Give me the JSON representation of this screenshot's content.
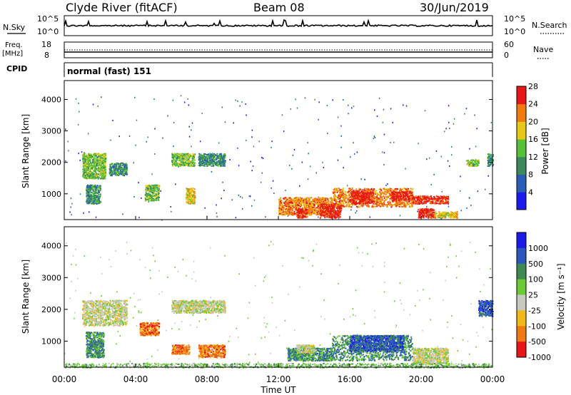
{
  "header": {
    "station": "Clyde River (fitACF)",
    "beam": "Beam 08",
    "date": "30/Jun/2019"
  },
  "top_panel": {
    "left_label": "N.Sky",
    "right_label": "N.Search",
    "left_ticks": [
      "10^5",
      "10^0"
    ],
    "right_ticks": [
      "10^5",
      "10^0"
    ]
  },
  "freq_panel": {
    "left_label_1": "Freq.",
    "left_label_2": "[MHz]",
    "right_label": "Nave",
    "left_ticks": [
      "18",
      "8"
    ],
    "right_ticks": [
      "60",
      "0"
    ],
    "cpid_label": "CPID",
    "cpid_text": "normal (fast) 151"
  },
  "chart_data": [
    {
      "type": "heatmap",
      "name": "power",
      "ylabel": "Slant Range [km]",
      "ylim": [
        180,
        4600
      ],
      "yticks": [
        "1000",
        "2000",
        "3000",
        "4000"
      ],
      "colorbar_label": "Power [dB]",
      "colorbar_ticks": [
        "4",
        "8",
        "12",
        "16",
        "20",
        "24",
        "28"
      ],
      "colorbar_colors": [
        "#1b1bf0",
        "#2a5db8",
        "#3a8a5c",
        "#56c036",
        "#e6c818",
        "#f07c10",
        "#e81818"
      ],
      "regions": [
        {
          "x0": 1.0,
          "x1": 2.3,
          "y0": 1500,
          "y1": 2300,
          "level": 3
        },
        {
          "x0": 1.2,
          "x1": 2.0,
          "y0": 700,
          "y1": 1300,
          "level": 2
        },
        {
          "x0": 2.5,
          "x1": 3.5,
          "y0": 1600,
          "y1": 2000,
          "level": 2
        },
        {
          "x0": 4.5,
          "x1": 5.3,
          "y0": 800,
          "y1": 1300,
          "level": 3
        },
        {
          "x0": 6.0,
          "x1": 7.3,
          "y0": 1900,
          "y1": 2300,
          "level": 3
        },
        {
          "x0": 7.5,
          "x1": 9.0,
          "y0": 1900,
          "y1": 2300,
          "level": 2
        },
        {
          "x0": 6.8,
          "x1": 7.3,
          "y0": 700,
          "y1": 1200,
          "level": 4
        },
        {
          "x0": 12.0,
          "x1": 15.0,
          "y0": 350,
          "y1": 900,
          "level": 5
        },
        {
          "x0": 13.0,
          "x1": 13.6,
          "y0": 250,
          "y1": 550,
          "level": 6
        },
        {
          "x0": 14.3,
          "x1": 15.5,
          "y0": 250,
          "y1": 700,
          "level": 6
        },
        {
          "x0": 15.0,
          "x1": 19.5,
          "y0": 600,
          "y1": 1200,
          "level": 5
        },
        {
          "x0": 16.0,
          "x1": 17.3,
          "y0": 700,
          "y1": 1100,
          "level": 6
        },
        {
          "x0": 18.3,
          "x1": 19.5,
          "y0": 800,
          "y1": 1100,
          "level": 6
        },
        {
          "x0": 19.5,
          "x1": 21.5,
          "y0": 700,
          "y1": 950,
          "level": 6
        },
        {
          "x0": 19.8,
          "x1": 20.7,
          "y0": 250,
          "y1": 550,
          "level": 6
        },
        {
          "x0": 20.7,
          "x1": 22.0,
          "y0": 250,
          "y1": 450,
          "level": 4
        },
        {
          "x0": 23.7,
          "x1": 24.0,
          "y0": 1900,
          "y1": 2300,
          "level": 2
        },
        {
          "x0": 22.5,
          "x1": 23.2,
          "y0": 1900,
          "y1": 2100,
          "level": 3
        }
      ]
    },
    {
      "type": "heatmap",
      "name": "velocity",
      "ylabel": "Slant Range [km]",
      "xlabel": "Time UT",
      "ylim": [
        180,
        4600
      ],
      "yticks": [
        "1000",
        "2000",
        "3000",
        "4000"
      ],
      "xticks": [
        "00:00",
        "04:00",
        "08:00",
        "12:00",
        "16:00",
        "20:00",
        "00:00"
      ],
      "colorbar_label": "Velocity [m s⁻¹]",
      "colorbar_ticks": [
        "1000",
        "500",
        "100",
        "25",
        "-25",
        "-100",
        "-500",
        "-1000"
      ],
      "colorbar_colors": [
        "#1c1ce8",
        "#2a58c0",
        "#3e8a52",
        "#6acb34",
        "#c8c8c0",
        "#f0b818",
        "#f07a10",
        "#e81818"
      ],
      "regions": [
        {
          "x0": 1.0,
          "x1": 3.5,
          "y0": 1500,
          "y1": 2300,
          "level": 4
        },
        {
          "x0": 1.2,
          "x1": 2.2,
          "y0": 500,
          "y1": 1300,
          "level": 2
        },
        {
          "x0": 4.2,
          "x1": 5.3,
          "y0": 1200,
          "y1": 1600,
          "level": 6
        },
        {
          "x0": 6.0,
          "x1": 9.0,
          "y0": 1900,
          "y1": 2300,
          "level": 4
        },
        {
          "x0": 7.5,
          "x1": 9.0,
          "y0": 500,
          "y1": 900,
          "level": 6
        },
        {
          "x0": 6.0,
          "x1": 7.0,
          "y0": 600,
          "y1": 900,
          "level": 6
        },
        {
          "x0": 12.5,
          "x1": 15.0,
          "y0": 400,
          "y1": 800,
          "level": 2
        },
        {
          "x0": 15.0,
          "x1": 19.5,
          "y0": 400,
          "y1": 1200,
          "level": 2
        },
        {
          "x0": 16.0,
          "x1": 19.0,
          "y0": 700,
          "y1": 1200,
          "level": 1
        },
        {
          "x0": 19.5,
          "x1": 21.5,
          "y0": 300,
          "y1": 800,
          "level": 4
        },
        {
          "x0": 13.0,
          "x1": 14.0,
          "y0": 650,
          "y1": 900,
          "level": 4
        },
        {
          "x0": 23.2,
          "x1": 24.0,
          "y0": 1800,
          "y1": 2300,
          "level": 1
        },
        {
          "x0": 0.0,
          "x1": 24.0,
          "y0": 180,
          "y1": 320,
          "level": 3
        }
      ]
    }
  ]
}
